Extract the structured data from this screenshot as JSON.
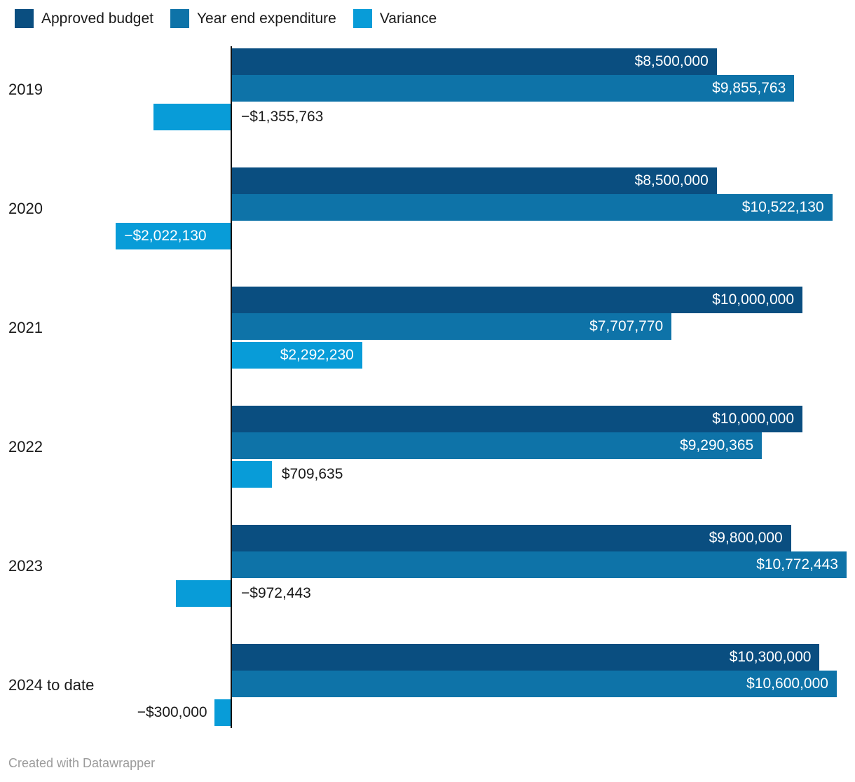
{
  "legend": {
    "items": [
      {
        "label": "Approved budget",
        "color": "#0a4e80"
      },
      {
        "label": "Year end expenditure",
        "color": "#0e73a8"
      },
      {
        "label": "Variance",
        "color": "#089cd8"
      }
    ]
  },
  "chart_data": {
    "type": "bar",
    "orientation": "horizontal",
    "title": "",
    "categories": [
      "2019",
      "2020",
      "2021",
      "2022",
      "2023",
      "2024 to date"
    ],
    "series": [
      {
        "name": "Approved budget",
        "color": "#0a4e80",
        "values": [
          8500000,
          8500000,
          10000000,
          10000000,
          9800000,
          10300000
        ],
        "labels": [
          "$8,500,000",
          "$8,500,000",
          "$10,000,000",
          "$10,000,000",
          "$9,800,000",
          "$10,300,000"
        ],
        "label_placement": [
          "inside",
          "inside",
          "inside",
          "inside",
          "inside",
          "inside"
        ]
      },
      {
        "name": "Year end expenditure",
        "color": "#0e73a8",
        "values": [
          9855763,
          10522130,
          7707770,
          9290365,
          10772443,
          10600000
        ],
        "labels": [
          "$9,855,763",
          "$10,522,130",
          "$7,707,770",
          "$9,290,365",
          "$10,772,443",
          "$10,600,000"
        ],
        "label_placement": [
          "inside",
          "inside",
          "inside",
          "inside",
          "inside",
          "inside"
        ]
      },
      {
        "name": "Variance",
        "color": "#089cd8",
        "values": [
          -1355763,
          -2022130,
          2292230,
          709635,
          -972443,
          -300000
        ],
        "labels": [
          "−$1,355,763",
          "−$2,022,130",
          "$2,292,230",
          "$709,635",
          "−$972,443",
          "−$300,000"
        ],
        "label_placement": [
          "outside-right",
          "inside",
          "inside",
          "outside-right",
          "outside-right",
          "outside-left"
        ]
      }
    ],
    "value_axis_max": 10772443,
    "zero_baseline": true,
    "grid": false,
    "legend_position": "top"
  },
  "footer": {
    "text": "Created with Datawrapper"
  },
  "colors": {
    "approved_budget": "#0a4e80",
    "year_end_expenditure": "#0e73a8",
    "variance": "#089cd8",
    "text": "#1a1a1a",
    "inside_label": "#ffffff",
    "footer_text": "#9b9b9b",
    "axis_line": "#121212",
    "background": "#ffffff"
  }
}
